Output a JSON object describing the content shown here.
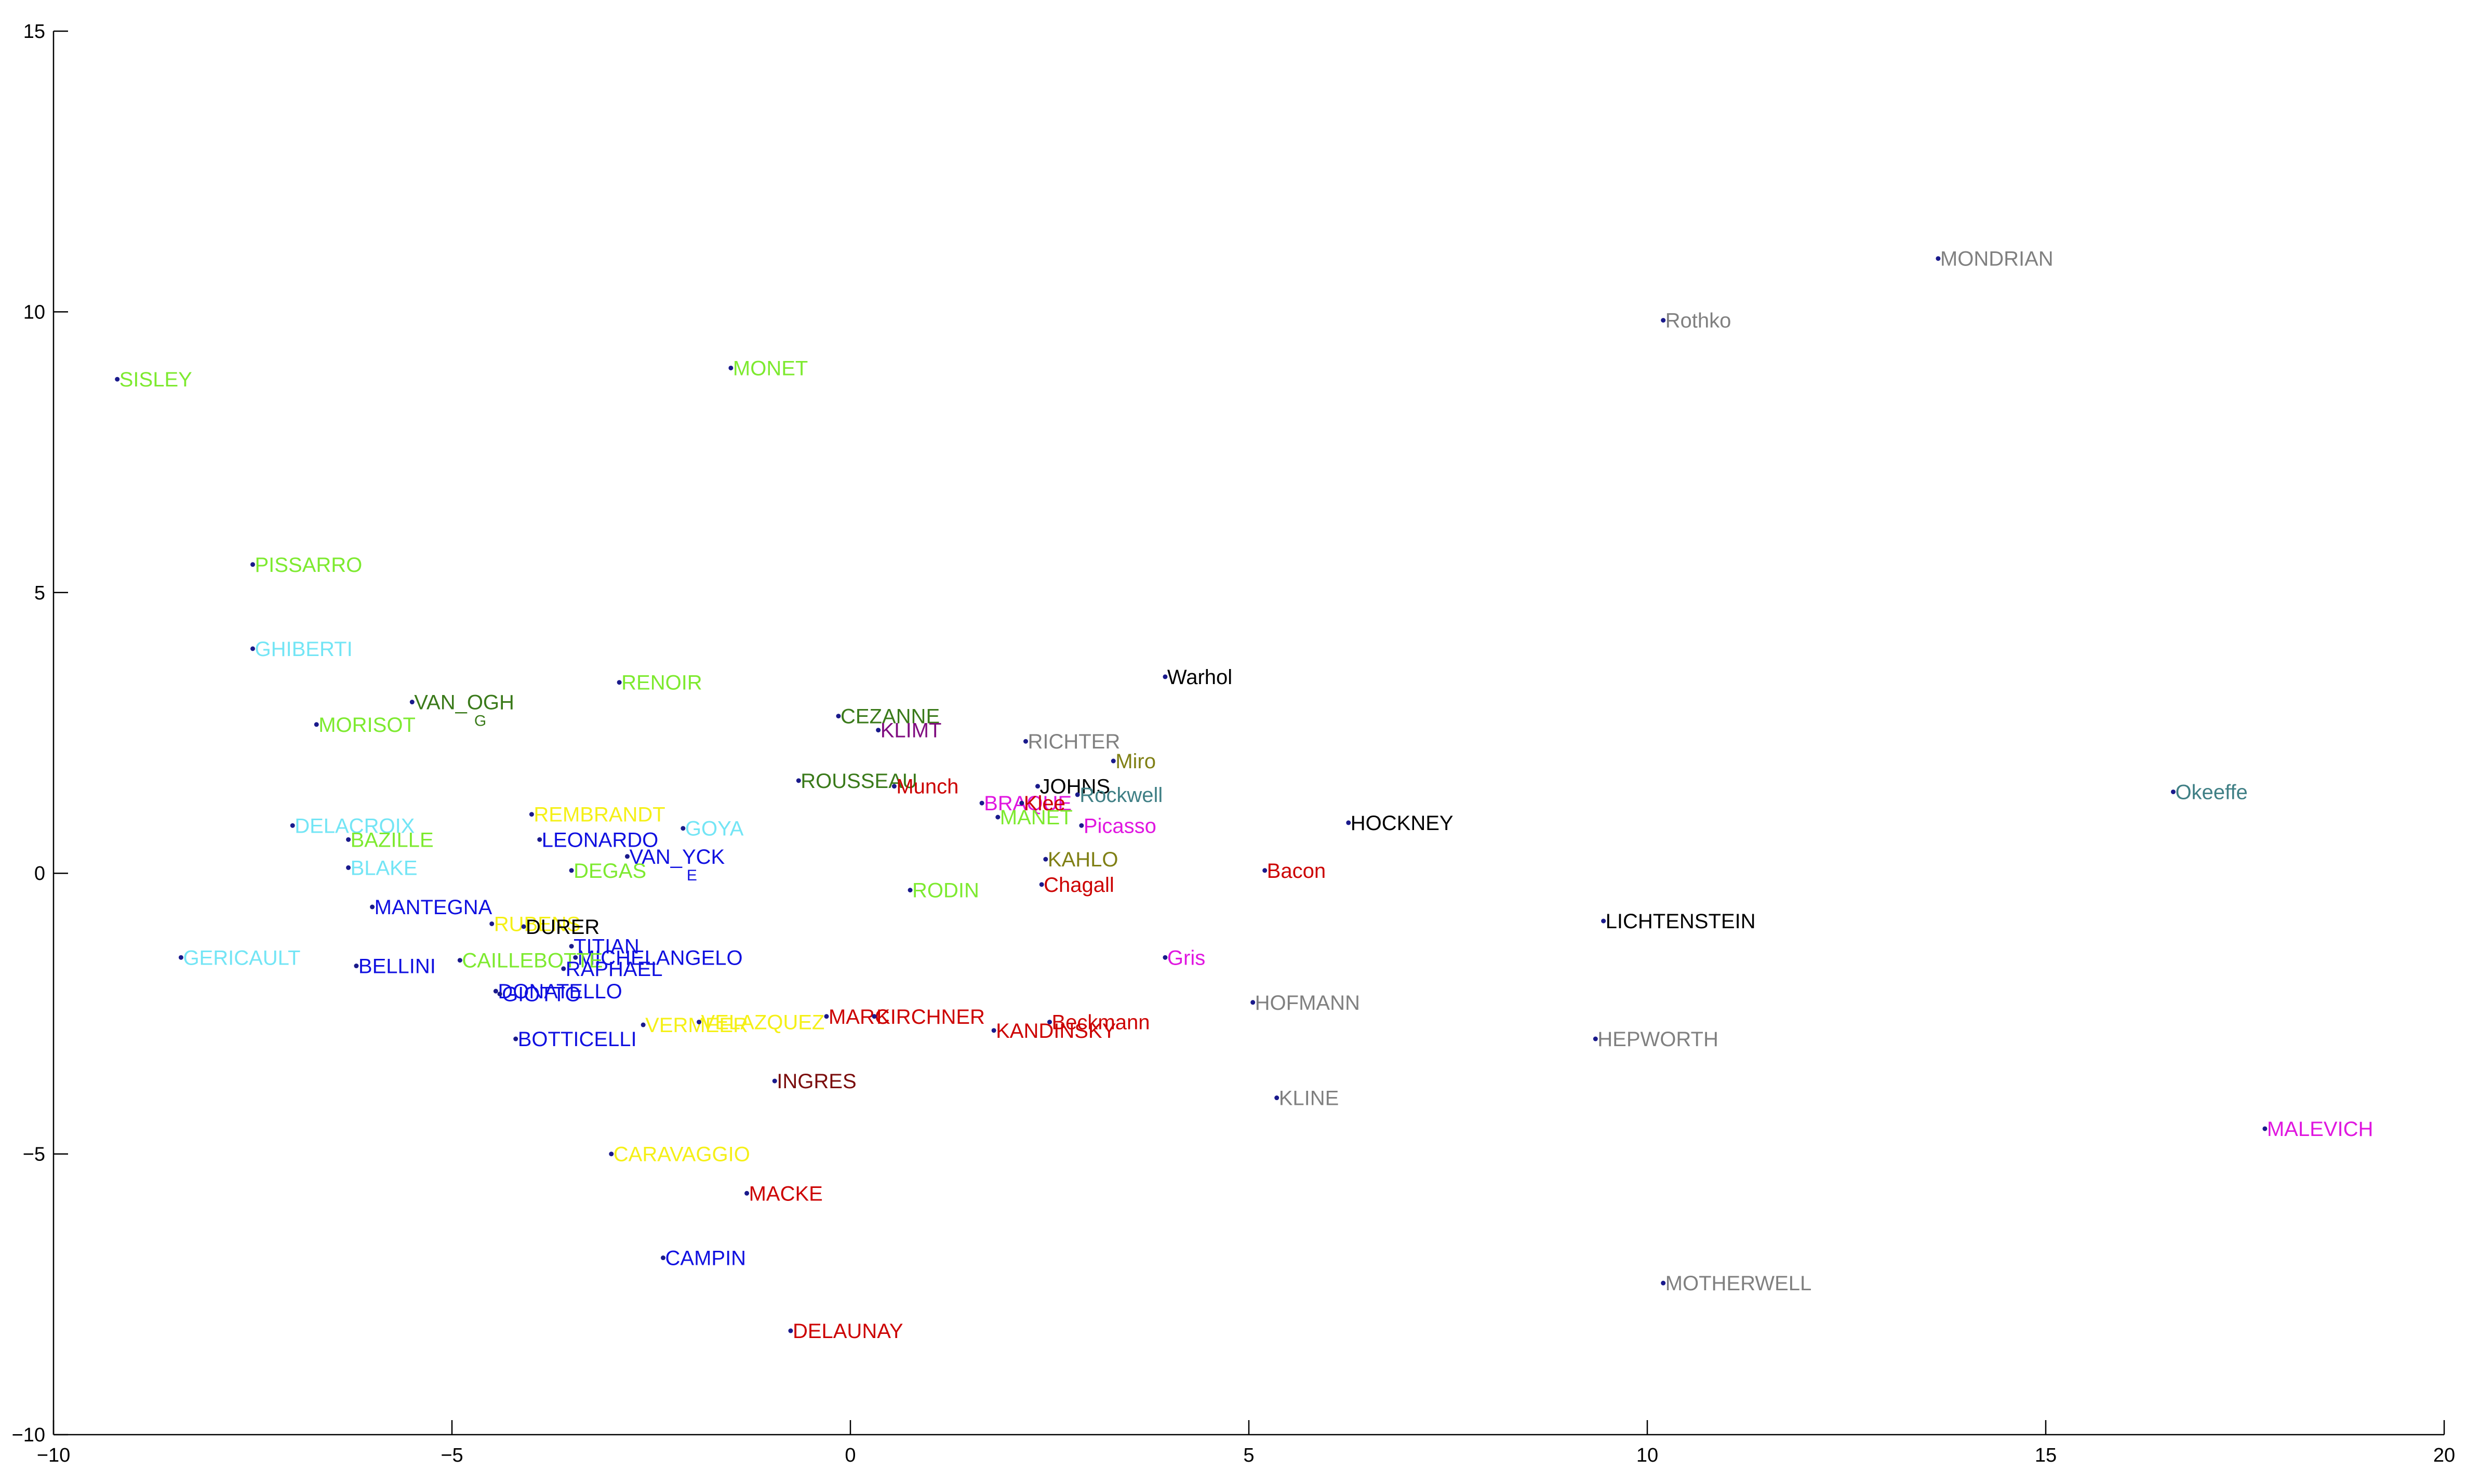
{
  "chart_data": {
    "type": "scatter",
    "title": "",
    "xlabel": "",
    "ylabel": "",
    "xlim": [
      -10,
      20
    ],
    "ylim": [
      -10,
      15
    ],
    "xticks": [
      -10,
      -5,
      0,
      5,
      10,
      15,
      20
    ],
    "yticks": [
      -10,
      -5,
      0,
      5,
      10,
      15
    ],
    "xtick_labels": [
      "−10",
      "−5",
      "0",
      "5",
      "10",
      "15",
      "20"
    ],
    "ytick_labels": [
      "−10",
      "−5",
      "0",
      "5",
      "10",
      "15"
    ],
    "grid": false,
    "colors": {
      "green": "#7dea2f",
      "darkgreen": "#3a7a1a",
      "cyan": "#73e5f5",
      "blue": "#1010e0",
      "yellow": "#f5f016",
      "red": "#cc0000",
      "darkred": "#7a0c0c",
      "magenta": "#e016e0",
      "purple": "#800d80",
      "gray": "#808080",
      "black": "#000000",
      "olive": "#808015",
      "teal": "#3f7f85"
    },
    "points": [
      {
        "label": "SISLEY",
        "x": -9.2,
        "y": 8.8,
        "color": "green"
      },
      {
        "label": "MONET",
        "x": -1.5,
        "y": 9.0,
        "color": "green"
      },
      {
        "label": "PISSARRO",
        "x": -7.5,
        "y": 5.5,
        "color": "green"
      },
      {
        "label": "GHIBERTI",
        "x": -7.5,
        "y": 4.0,
        "color": "cyan"
      },
      {
        "label": "VAN_OGH",
        "sub": "G",
        "x": -5.5,
        "y": 3.05,
        "color": "darkgreen"
      },
      {
        "label": "MORISOT",
        "x": -6.7,
        "y": 2.65,
        "color": "green"
      },
      {
        "label": "RENOIR",
        "x": -2.9,
        "y": 3.4,
        "color": "green"
      },
      {
        "label": "DELACROIX",
        "x": -7.0,
        "y": 0.85,
        "color": "cyan"
      },
      {
        "label": "BAZILLE",
        "x": -6.3,
        "y": 0.6,
        "color": "green"
      },
      {
        "label": "BLAKE",
        "x": -6.3,
        "y": 0.1,
        "color": "cyan"
      },
      {
        "label": "REMBRANDT",
        "x": -4.0,
        "y": 1.05,
        "color": "yellow"
      },
      {
        "label": "LEONARDO",
        "x": -3.9,
        "y": 0.6,
        "color": "blue"
      },
      {
        "label": "GOYA",
        "x": -2.1,
        "y": 0.8,
        "color": "cyan"
      },
      {
        "label": "VAN_YCK",
        "sub": "E",
        "x": -2.8,
        "y": 0.3,
        "color": "blue"
      },
      {
        "label": "DEGAS",
        "x": -3.5,
        "y": 0.05,
        "color": "green"
      },
      {
        "label": "MANTEGNA",
        "x": -6.0,
        "y": -0.6,
        "color": "blue"
      },
      {
        "label": "GERICAULT",
        "x": -8.4,
        "y": -1.5,
        "color": "cyan"
      },
      {
        "label": "BELLINI",
        "x": -6.2,
        "y": -1.65,
        "color": "blue"
      },
      {
        "label": "RUBENS",
        "x": -4.5,
        "y": -0.9,
        "color": "yellow"
      },
      {
        "label": "DURER",
        "x": -4.1,
        "y": -0.95,
        "color": "black"
      },
      {
        "label": "TITIAN",
        "x": -3.5,
        "y": -1.3,
        "color": "blue"
      },
      {
        "label": "MICHELANGELO",
        "x": -3.45,
        "y": -1.5,
        "color": "blue"
      },
      {
        "label": "CAILLEBOTTE",
        "x": -4.9,
        "y": -1.55,
        "color": "green"
      },
      {
        "label": "RAPHAEL",
        "x": -3.6,
        "y": -1.7,
        "color": "blue"
      },
      {
        "label": "DONATELLO",
        "x": -4.45,
        "y": -2.1,
        "color": "blue"
      },
      {
        "label": "GIOTTO",
        "x": -4.4,
        "y": -2.15,
        "color": "blue"
      },
      {
        "label": "BOTTICELLI",
        "x": -4.2,
        "y": -2.95,
        "color": "blue"
      },
      {
        "label": "VERMEER",
        "x": -2.6,
        "y": -2.7,
        "color": "yellow"
      },
      {
        "label": "VELAZQUEZ",
        "x": -1.9,
        "y": -2.65,
        "color": "yellow"
      },
      {
        "label": "CARAVAGGIO",
        "x": -3.0,
        "y": -5.0,
        "color": "yellow"
      },
      {
        "label": "CAMPIN",
        "x": -2.35,
        "y": -6.85,
        "color": "blue"
      },
      {
        "label": "INGRES",
        "x": -0.95,
        "y": -3.7,
        "color": "darkred"
      },
      {
        "label": "MACKE",
        "x": -1.3,
        "y": -5.7,
        "color": "red"
      },
      {
        "label": "DELAUNAY",
        "x": -0.75,
        "y": -8.15,
        "color": "red"
      },
      {
        "label": "MARC",
        "x": -0.3,
        "y": -2.55,
        "color": "red"
      },
      {
        "label": "KIRCHNER",
        "x": 0.3,
        "y": -2.55,
        "color": "red"
      },
      {
        "label": "CEZANNE",
        "x": -0.15,
        "y": 2.8,
        "color": "darkgreen"
      },
      {
        "label": "KLIMT",
        "x": 0.35,
        "y": 2.55,
        "color": "purple"
      },
      {
        "label": "ROUSSEAU",
        "x": -0.65,
        "y": 1.65,
        "color": "darkgreen"
      },
      {
        "label": "Munch",
        "x": 0.55,
        "y": 1.55,
        "color": "red"
      },
      {
        "label": "RODIN",
        "x": 0.75,
        "y": -0.3,
        "color": "green"
      },
      {
        "label": "RICHTER",
        "x": 2.2,
        "y": 2.35,
        "color": "gray"
      },
      {
        "label": "Miro",
        "x": 3.3,
        "y": 2.0,
        "color": "olive"
      },
      {
        "label": "JOHNS",
        "x": 2.35,
        "y": 1.55,
        "color": "black"
      },
      {
        "label": "BRAQUE",
        "x": 1.65,
        "y": 1.25,
        "color": "magenta"
      },
      {
        "label": "Klee",
        "x": 2.15,
        "y": 1.25,
        "color": "red"
      },
      {
        "label": "Rockwell",
        "x": 2.85,
        "y": 1.4,
        "color": "teal"
      },
      {
        "label": "MANET",
        "x": 1.85,
        "y": 1.0,
        "color": "green"
      },
      {
        "label": "Picasso",
        "x": 2.9,
        "y": 0.85,
        "color": "magenta"
      },
      {
        "label": "KAHLO",
        "x": 2.45,
        "y": 0.25,
        "color": "olive"
      },
      {
        "label": "Chagall",
        "x": 2.4,
        "y": -0.2,
        "color": "red"
      },
      {
        "label": "KANDINSKY",
        "x": 1.8,
        "y": -2.8,
        "color": "red"
      },
      {
        "label": "Beckmann",
        "x": 2.5,
        "y": -2.65,
        "color": "red"
      },
      {
        "label": "Warhol",
        "x": 3.95,
        "y": 3.5,
        "color": "black"
      },
      {
        "label": "HOCKNEY",
        "x": 6.25,
        "y": 0.9,
        "color": "black"
      },
      {
        "label": "Bacon",
        "x": 5.2,
        "y": 0.05,
        "color": "red"
      },
      {
        "label": "Gris",
        "x": 3.95,
        "y": -1.5,
        "color": "magenta"
      },
      {
        "label": "HOFMANN",
        "x": 5.05,
        "y": -2.3,
        "color": "gray"
      },
      {
        "label": "KLINE",
        "x": 5.35,
        "y": -4.0,
        "color": "gray"
      },
      {
        "label": "Rothko",
        "x": 10.2,
        "y": 9.85,
        "color": "gray"
      },
      {
        "label": "MONDRIAN",
        "x": 13.65,
        "y": 10.95,
        "color": "gray"
      },
      {
        "label": "LICHTENSTEIN",
        "x": 9.45,
        "y": -0.85,
        "color": "black"
      },
      {
        "label": "HEPWORTH",
        "x": 9.35,
        "y": -2.95,
        "color": "gray"
      },
      {
        "label": "MOTHERWELL",
        "x": 10.2,
        "y": -7.3,
        "color": "gray"
      },
      {
        "label": "Okeeffe",
        "x": 16.6,
        "y": 1.45,
        "color": "teal"
      },
      {
        "label": "MALEVICH",
        "x": 17.75,
        "y": -4.55,
        "color": "magenta"
      }
    ]
  }
}
